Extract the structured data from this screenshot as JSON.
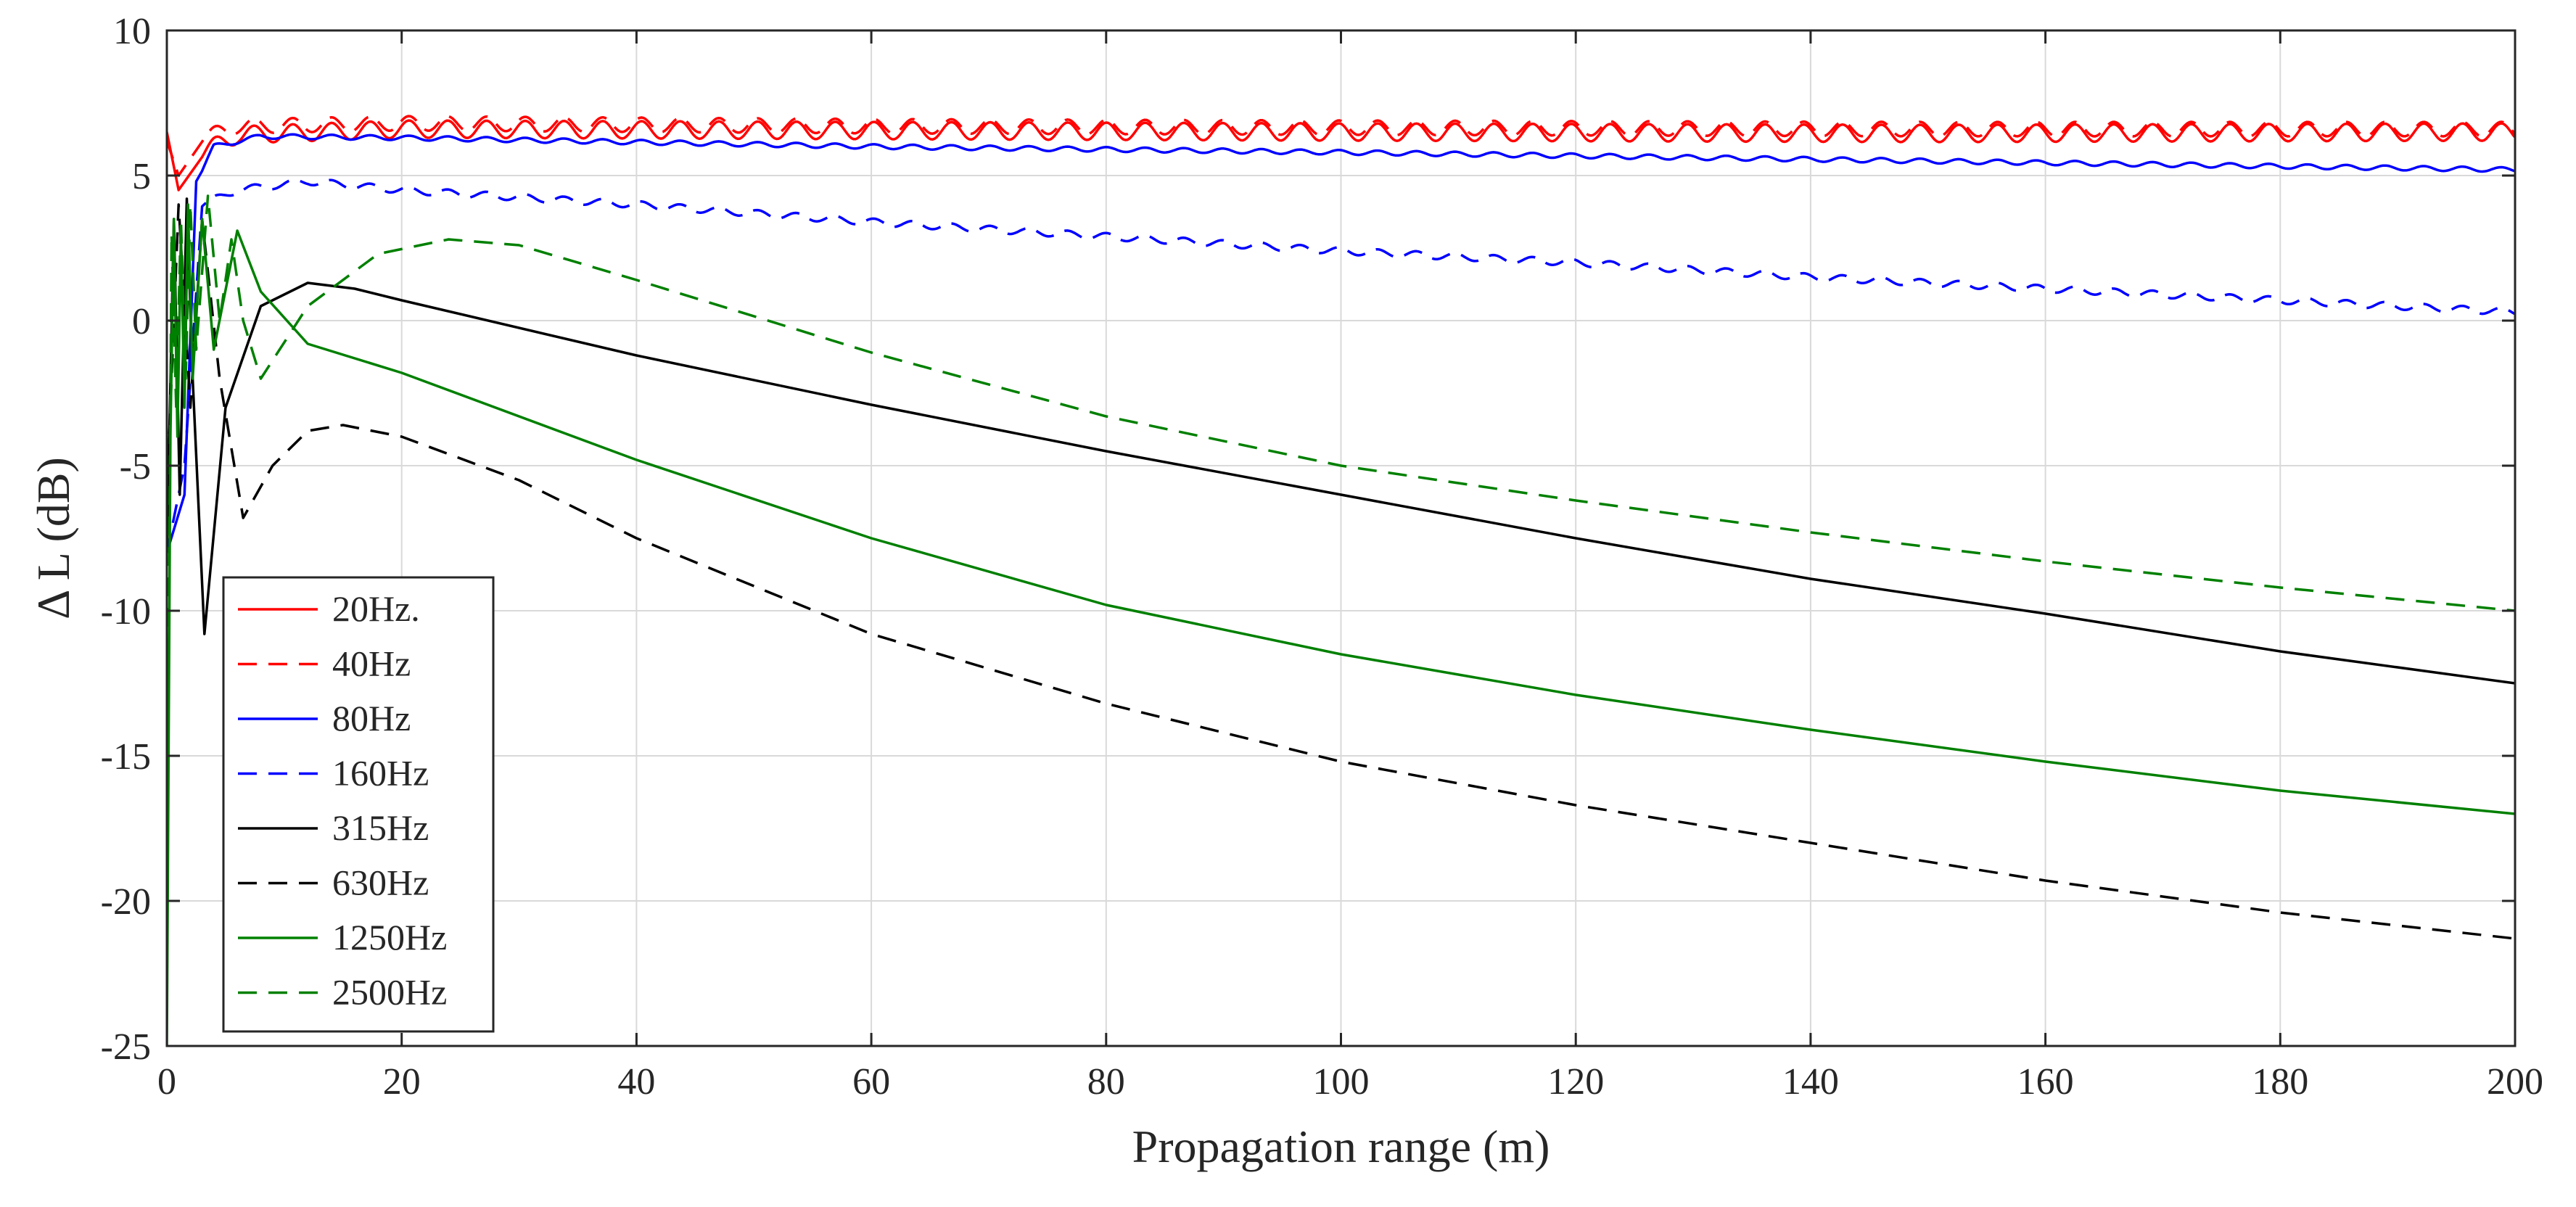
{
  "chart_data": {
    "type": "line",
    "title": "",
    "xlabel": "Propagation range (m)",
    "ylabel": "Δ L (dB)",
    "xlim": [
      0,
      200
    ],
    "ylim": [
      -25,
      10
    ],
    "xticks": [
      0,
      20,
      40,
      60,
      80,
      100,
      120,
      140,
      160,
      180,
      200
    ],
    "yticks": [
      -25,
      -20,
      -15,
      -10,
      -5,
      0,
      5,
      10
    ],
    "grid": true,
    "legend_position": "bottom-left",
    "series": [
      {
        "name": "20Hz.",
        "color": "#ff0000",
        "dash": "solid",
        "ripple": 0.3,
        "points": [
          [
            0,
            6.5
          ],
          [
            1,
            4.5
          ],
          [
            3,
            5.8
          ],
          [
            6,
            6.4
          ],
          [
            20,
            6.6
          ],
          [
            60,
            6.55
          ],
          [
            100,
            6.5
          ],
          [
            150,
            6.45
          ],
          [
            200,
            6.5
          ]
        ]
      },
      {
        "name": "40Hz",
        "color": "#ff0000",
        "dash": "dashed",
        "ripple": 0.25,
        "points": [
          [
            0,
            6.2
          ],
          [
            1,
            5.0
          ],
          [
            3,
            6.3
          ],
          [
            6,
            6.7
          ],
          [
            20,
            6.8
          ],
          [
            60,
            6.7
          ],
          [
            100,
            6.65
          ],
          [
            150,
            6.6
          ],
          [
            200,
            6.6
          ]
        ]
      },
      {
        "name": "80Hz",
        "color": "#0000ff",
        "dash": "solid",
        "ripple": 0.08,
        "points": [
          [
            0,
            -8
          ],
          [
            1.5,
            -6
          ],
          [
            2.5,
            4.8
          ],
          [
            4,
            6.0
          ],
          [
            8,
            6.35
          ],
          [
            20,
            6.3
          ],
          [
            60,
            6.0
          ],
          [
            100,
            5.8
          ],
          [
            150,
            5.5
          ],
          [
            200,
            5.2
          ]
        ]
      },
      {
        "name": "160Hz",
        "color": "#0000ff",
        "dash": "dashed",
        "ripple": 0.12,
        "points": [
          [
            0,
            -8
          ],
          [
            1.5,
            -5
          ],
          [
            3,
            4.0
          ],
          [
            6,
            4.5
          ],
          [
            12,
            4.8
          ],
          [
            20,
            4.5
          ],
          [
            40,
            4.0
          ],
          [
            60,
            3.4
          ],
          [
            80,
            2.9
          ],
          [
            100,
            2.4
          ],
          [
            120,
            2.0
          ],
          [
            140,
            1.5
          ],
          [
            160,
            1.1
          ],
          [
            180,
            0.7
          ],
          [
            200,
            0.3
          ]
        ]
      },
      {
        "name": "315Hz",
        "color": "#000000",
        "dash": "solid",
        "ripple": 0,
        "points": [
          [
            0,
            -8
          ],
          [
            0.6,
            3.5
          ],
          [
            1.1,
            -6
          ],
          [
            1.7,
            4.2
          ],
          [
            2.2,
            -2
          ],
          [
            3.2,
            -10.8
          ],
          [
            5,
            -3
          ],
          [
            8,
            0.5
          ],
          [
            12,
            1.3
          ],
          [
            16,
            1.1
          ],
          [
            20,
            0.7
          ],
          [
            40,
            -1.2
          ],
          [
            60,
            -2.9
          ],
          [
            80,
            -4.5
          ],
          [
            100,
            -6.0
          ],
          [
            120,
            -7.5
          ],
          [
            140,
            -8.9
          ],
          [
            160,
            -10.1
          ],
          [
            180,
            -11.4
          ],
          [
            200,
            -12.5
          ]
        ]
      },
      {
        "name": "630Hz",
        "color": "#000000",
        "dash": "dashed",
        "ripple": 0,
        "points": [
          [
            0,
            -6
          ],
          [
            1,
            4
          ],
          [
            2,
            -3
          ],
          [
            3,
            3.5
          ],
          [
            4.5,
            -2
          ],
          [
            6.5,
            -6.8
          ],
          [
            9,
            -5
          ],
          [
            12,
            -3.8
          ],
          [
            15,
            -3.6
          ],
          [
            20,
            -4.0
          ],
          [
            30,
            -5.5
          ],
          [
            40,
            -7.5
          ],
          [
            60,
            -10.8
          ],
          [
            80,
            -13.2
          ],
          [
            100,
            -15.2
          ],
          [
            120,
            -16.7
          ],
          [
            140,
            -18.0
          ],
          [
            160,
            -19.3
          ],
          [
            180,
            -20.4
          ],
          [
            200,
            -21.3
          ]
        ]
      },
      {
        "name": "1250Hz",
        "color": "#008000",
        "dash": "solid",
        "ripple": 0,
        "points": [
          [
            0,
            -25
          ],
          [
            0.3,
            -4
          ],
          [
            0.6,
            3.5
          ],
          [
            0.9,
            -4
          ],
          [
            1.2,
            3.0
          ],
          [
            1.5,
            -3
          ],
          [
            1.8,
            4.0
          ],
          [
            2.2,
            -2
          ],
          [
            3,
            3.5
          ],
          [
            4,
            -1
          ],
          [
            6,
            3.1
          ],
          [
            8,
            1.0
          ],
          [
            12,
            -0.8
          ],
          [
            20,
            -1.8
          ],
          [
            40,
            -4.8
          ],
          [
            60,
            -7.5
          ],
          [
            80,
            -9.8
          ],
          [
            100,
            -11.5
          ],
          [
            120,
            -12.9
          ],
          [
            140,
            -14.1
          ],
          [
            160,
            -15.2
          ],
          [
            180,
            -16.2
          ],
          [
            200,
            -17.0
          ]
        ]
      },
      {
        "name": "2500Hz",
        "color": "#008000",
        "dash": "dashed",
        "ripple": 0,
        "points": [
          [
            0,
            -20
          ],
          [
            0.4,
            3
          ],
          [
            0.8,
            -3
          ],
          [
            1.2,
            3.5
          ],
          [
            1.6,
            -2
          ],
          [
            2,
            4
          ],
          [
            2.5,
            -1
          ],
          [
            3.5,
            4.3
          ],
          [
            4.5,
            0
          ],
          [
            5.5,
            2.8
          ],
          [
            6.5,
            0
          ],
          [
            8,
            -2
          ],
          [
            12,
            0.5
          ],
          [
            18,
            2.3
          ],
          [
            24,
            2.8
          ],
          [
            30,
            2.6
          ],
          [
            40,
            1.4
          ],
          [
            60,
            -1.1
          ],
          [
            80,
            -3.3
          ],
          [
            100,
            -5.0
          ],
          [
            120,
            -6.2
          ],
          [
            140,
            -7.3
          ],
          [
            160,
            -8.3
          ],
          [
            180,
            -9.2
          ],
          [
            200,
            -10.0
          ]
        ]
      }
    ]
  }
}
